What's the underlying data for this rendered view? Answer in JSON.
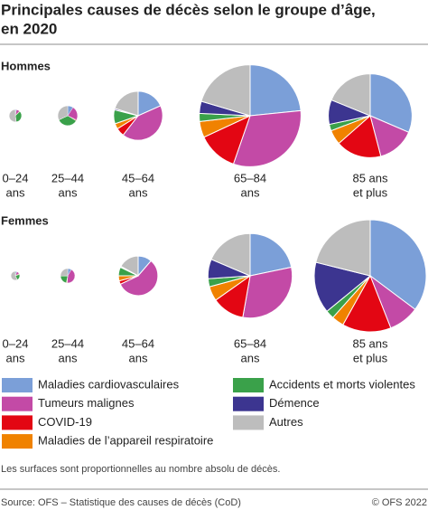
{
  "chart_data": {
    "type": "pie",
    "title": [
      "Principales causes de décès selon le groupe d’âge,",
      "en 2020"
    ],
    "categories": [
      "Maladies cardiovasculaires",
      "Tumeurs malignes",
      "COVID-19",
      "Maladies de l’appareil respiratoire",
      "Accidents et morts violentes",
      "Démence",
      "Autres"
    ],
    "colors": [
      "#7b9fd8",
      "#c34aa6",
      "#e30613",
      "#f08200",
      "#3aa14a",
      "#3c3590",
      "#bdbdbd"
    ],
    "groups": [
      {
        "name": "Hommes",
        "pies": [
          {
            "label": [
              "0–24",
              "ans"
            ],
            "values": [
              10,
              30,
              0,
              5,
              120,
              0,
              180
            ]
          },
          {
            "label": [
              "25–44",
              "ans"
            ],
            "values": [
              80,
              200,
              10,
              5,
              300,
              0,
              280
            ]
          },
          {
            "label": [
              "45–64",
              "ans"
            ],
            "values": [
              1000,
              2300,
              300,
              200,
              500,
              50,
              1100
            ]
          },
          {
            "label": [
              "65–84",
              "ans"
            ],
            "values": [
              5500,
              7500,
              3000,
              1200,
              600,
              900,
              4800
            ]
          },
          {
            "label": [
              "85 ans",
              "et plus"
            ],
            "values": [
              5000,
              2300,
              2800,
              900,
              400,
              1500,
              3000
            ]
          }
        ]
      },
      {
        "name": "Femmes",
        "pies": [
          {
            "label": [
              "0–24",
              "ans"
            ],
            "values": [
              10,
              20,
              0,
              5,
              40,
              0,
              100
            ]
          },
          {
            "label": [
              "25–44",
              "ans"
            ],
            "values": [
              40,
              200,
              5,
              5,
              100,
              0,
              120
            ]
          },
          {
            "label": [
              "45–64",
              "ans"
            ],
            "values": [
              400,
              2000,
              100,
              150,
              250,
              30,
              600
            ]
          },
          {
            "label": [
              "65–84",
              "ans"
            ],
            "values": [
              3500,
              5000,
              2000,
              900,
              500,
              1200,
              3000
            ]
          },
          {
            "label": [
              "85 ans",
              "et plus"
            ],
            "values": [
              10000,
              2500,
              4000,
              1000,
              700,
              4200,
              6000
            ]
          }
        ]
      }
    ],
    "note": "Les surfaces sont proportionnelles au nombre absolu de décès.",
    "source": "Source: OFS – Statistique des causes de décès (CoD)",
    "copyright": "© OFS 2022"
  }
}
